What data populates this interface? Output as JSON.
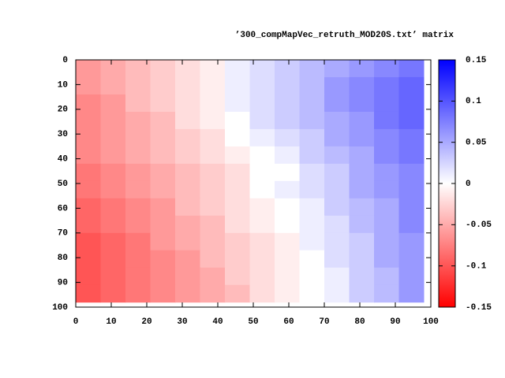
{
  "chart_data": {
    "type": "heatmap",
    "title": "’300_compMapVec_retruth_MOD20S.txt’ matrix",
    "x": [
      0,
      7,
      14,
      21,
      28,
      35,
      42,
      49,
      56,
      63,
      70,
      77,
      84,
      91
    ],
    "y": [
      0,
      7,
      14,
      21,
      28,
      35,
      42,
      49,
      56,
      63,
      70,
      77,
      84,
      91
    ],
    "values": [
      [
        -0.06,
        -0.05,
        -0.04,
        -0.03,
        -0.02,
        -0.01,
        0.01,
        0.02,
        0.03,
        0.04,
        0.05,
        0.06,
        0.07,
        0.08
      ],
      [
        -0.06,
        -0.05,
        -0.04,
        -0.03,
        -0.02,
        -0.01,
        0.01,
        0.02,
        0.03,
        0.04,
        0.06,
        0.07,
        0.08,
        0.09
      ],
      [
        -0.07,
        -0.06,
        -0.04,
        -0.03,
        -0.02,
        -0.01,
        0.01,
        0.02,
        0.03,
        0.04,
        0.06,
        0.07,
        0.08,
        0.09
      ],
      [
        -0.07,
        -0.06,
        -0.05,
        -0.04,
        -0.02,
        -0.01,
        0,
        0.02,
        0.03,
        0.04,
        0.05,
        0.06,
        0.08,
        0.09
      ],
      [
        -0.07,
        -0.06,
        -0.05,
        -0.04,
        -0.03,
        -0.02,
        0,
        0.01,
        0.02,
        0.03,
        0.05,
        0.06,
        0.07,
        0.08
      ],
      [
        -0.07,
        -0.06,
        -0.05,
        -0.04,
        -0.03,
        -0.02,
        -0.01,
        0,
        0.01,
        0.03,
        0.04,
        0.05,
        0.07,
        0.08
      ],
      [
        -0.08,
        -0.07,
        -0.06,
        -0.05,
        -0.04,
        -0.03,
        -0.02,
        0,
        0,
        0.02,
        0.03,
        0.05,
        0.06,
        0.07
      ],
      [
        -0.08,
        -0.07,
        -0.06,
        -0.05,
        -0.04,
        -0.03,
        -0.02,
        0,
        0.01,
        0.02,
        0.03,
        0.05,
        0.06,
        0.07
      ],
      [
        -0.09,
        -0.08,
        -0.07,
        -0.06,
        -0.04,
        -0.03,
        -0.02,
        -0.01,
        0,
        0.01,
        0.03,
        0.04,
        0.05,
        0.07
      ],
      [
        -0.09,
        -0.08,
        -0.07,
        -0.06,
        -0.05,
        -0.04,
        -0.02,
        -0.01,
        0,
        0.01,
        0.02,
        0.04,
        0.05,
        0.07
      ],
      [
        -0.1,
        -0.09,
        -0.08,
        -0.06,
        -0.05,
        -0.04,
        -0.03,
        -0.02,
        -0.01,
        0.01,
        0.02,
        0.03,
        0.05,
        0.06
      ],
      [
        -0.1,
        -0.09,
        -0.08,
        -0.07,
        -0.06,
        -0.04,
        -0.03,
        -0.02,
        -0.01,
        0,
        0.02,
        0.03,
        0.05,
        0.06
      ],
      [
        -0.1,
        -0.09,
        -0.08,
        -0.07,
        -0.06,
        -0.05,
        -0.03,
        -0.02,
        -0.01,
        0,
        0.01,
        0.03,
        0.04,
        0.06
      ],
      [
        -0.1,
        -0.09,
        -0.08,
        -0.07,
        -0.06,
        -0.05,
        -0.04,
        -0.02,
        -0.01,
        0,
        0.01,
        0.03,
        0.04,
        0.06
      ]
    ],
    "xlim": [
      0,
      100
    ],
    "xticks": [
      0,
      10,
      20,
      30,
      40,
      50,
      60,
      70,
      80,
      90,
      100
    ],
    "ylim": [
      100,
      0
    ],
    "yticks": [
      0,
      10,
      20,
      30,
      40,
      50,
      60,
      70,
      80,
      90,
      100
    ],
    "cblim": [
      -0.15,
      0.15
    ],
    "cbticks": [
      -0.15,
      -0.1,
      -0.05,
      0,
      0.05,
      0.1,
      0.15
    ],
    "colors": [
      "#ff0000",
      "#ffffff",
      "#0000ff"
    ]
  }
}
